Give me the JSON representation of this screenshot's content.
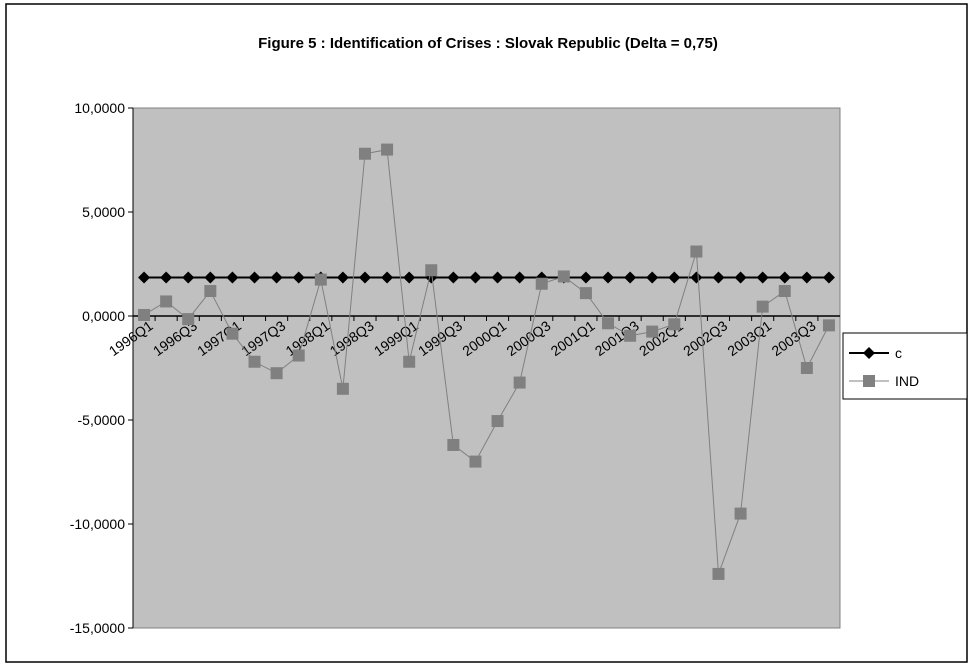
{
  "chart_data": {
    "type": "line",
    "title": "Figure 5 : Identification of Crises : Slovak Republic (Delta = 0,75)",
    "categories": [
      "1996Q1",
      null,
      "1996Q3",
      null,
      "1997Q1",
      null,
      "1997Q3",
      null,
      "1998Q1",
      null,
      "1998Q3",
      null,
      "1999Q1",
      null,
      "1999Q3",
      null,
      "2000Q1",
      null,
      "2000Q3",
      null,
      "2001Q1",
      null,
      "2001Q3",
      null,
      "2002Q1",
      null,
      "2002Q3",
      null,
      "2003Q1",
      null,
      "2003Q3",
      null
    ],
    "series": [
      {
        "name": "c",
        "color": "#000000",
        "marker": "diamond",
        "values": [
          1.85,
          1.85,
          1.85,
          1.85,
          1.85,
          1.85,
          1.85,
          1.85,
          1.85,
          1.85,
          1.85,
          1.85,
          1.85,
          1.85,
          1.85,
          1.85,
          1.85,
          1.85,
          1.85,
          1.85,
          1.85,
          1.85,
          1.85,
          1.85,
          1.85,
          1.85,
          1.85,
          1.85,
          1.85,
          1.85,
          1.85,
          1.85
        ]
      },
      {
        "name": "IND",
        "color": "#808080",
        "marker": "square",
        "values": [
          0.05,
          0.7,
          -0.15,
          1.2,
          -0.85,
          -2.2,
          -2.75,
          -1.9,
          1.75,
          -3.5,
          7.8,
          8.0,
          -2.2,
          2.2,
          -6.2,
          -7.0,
          -5.05,
          -3.2,
          1.55,
          1.9,
          1.1,
          -0.35,
          -0.95,
          -0.75,
          -0.4,
          3.1,
          -12.4,
          -9.5,
          0.45,
          1.2,
          -2.5,
          -0.45
        ]
      }
    ],
    "ylim": [
      -15,
      10
    ],
    "yticks": [
      {
        "value": -15,
        "label": "-15,0000"
      },
      {
        "value": -10,
        "label": "-10,0000"
      },
      {
        "value": -5,
        "label": "-5,0000"
      },
      {
        "value": 0,
        "label": "0,0000"
      },
      {
        "value": 5,
        "label": "5,0000"
      },
      {
        "value": 10,
        "label": "10,0000"
      }
    ],
    "legend": "right"
  }
}
